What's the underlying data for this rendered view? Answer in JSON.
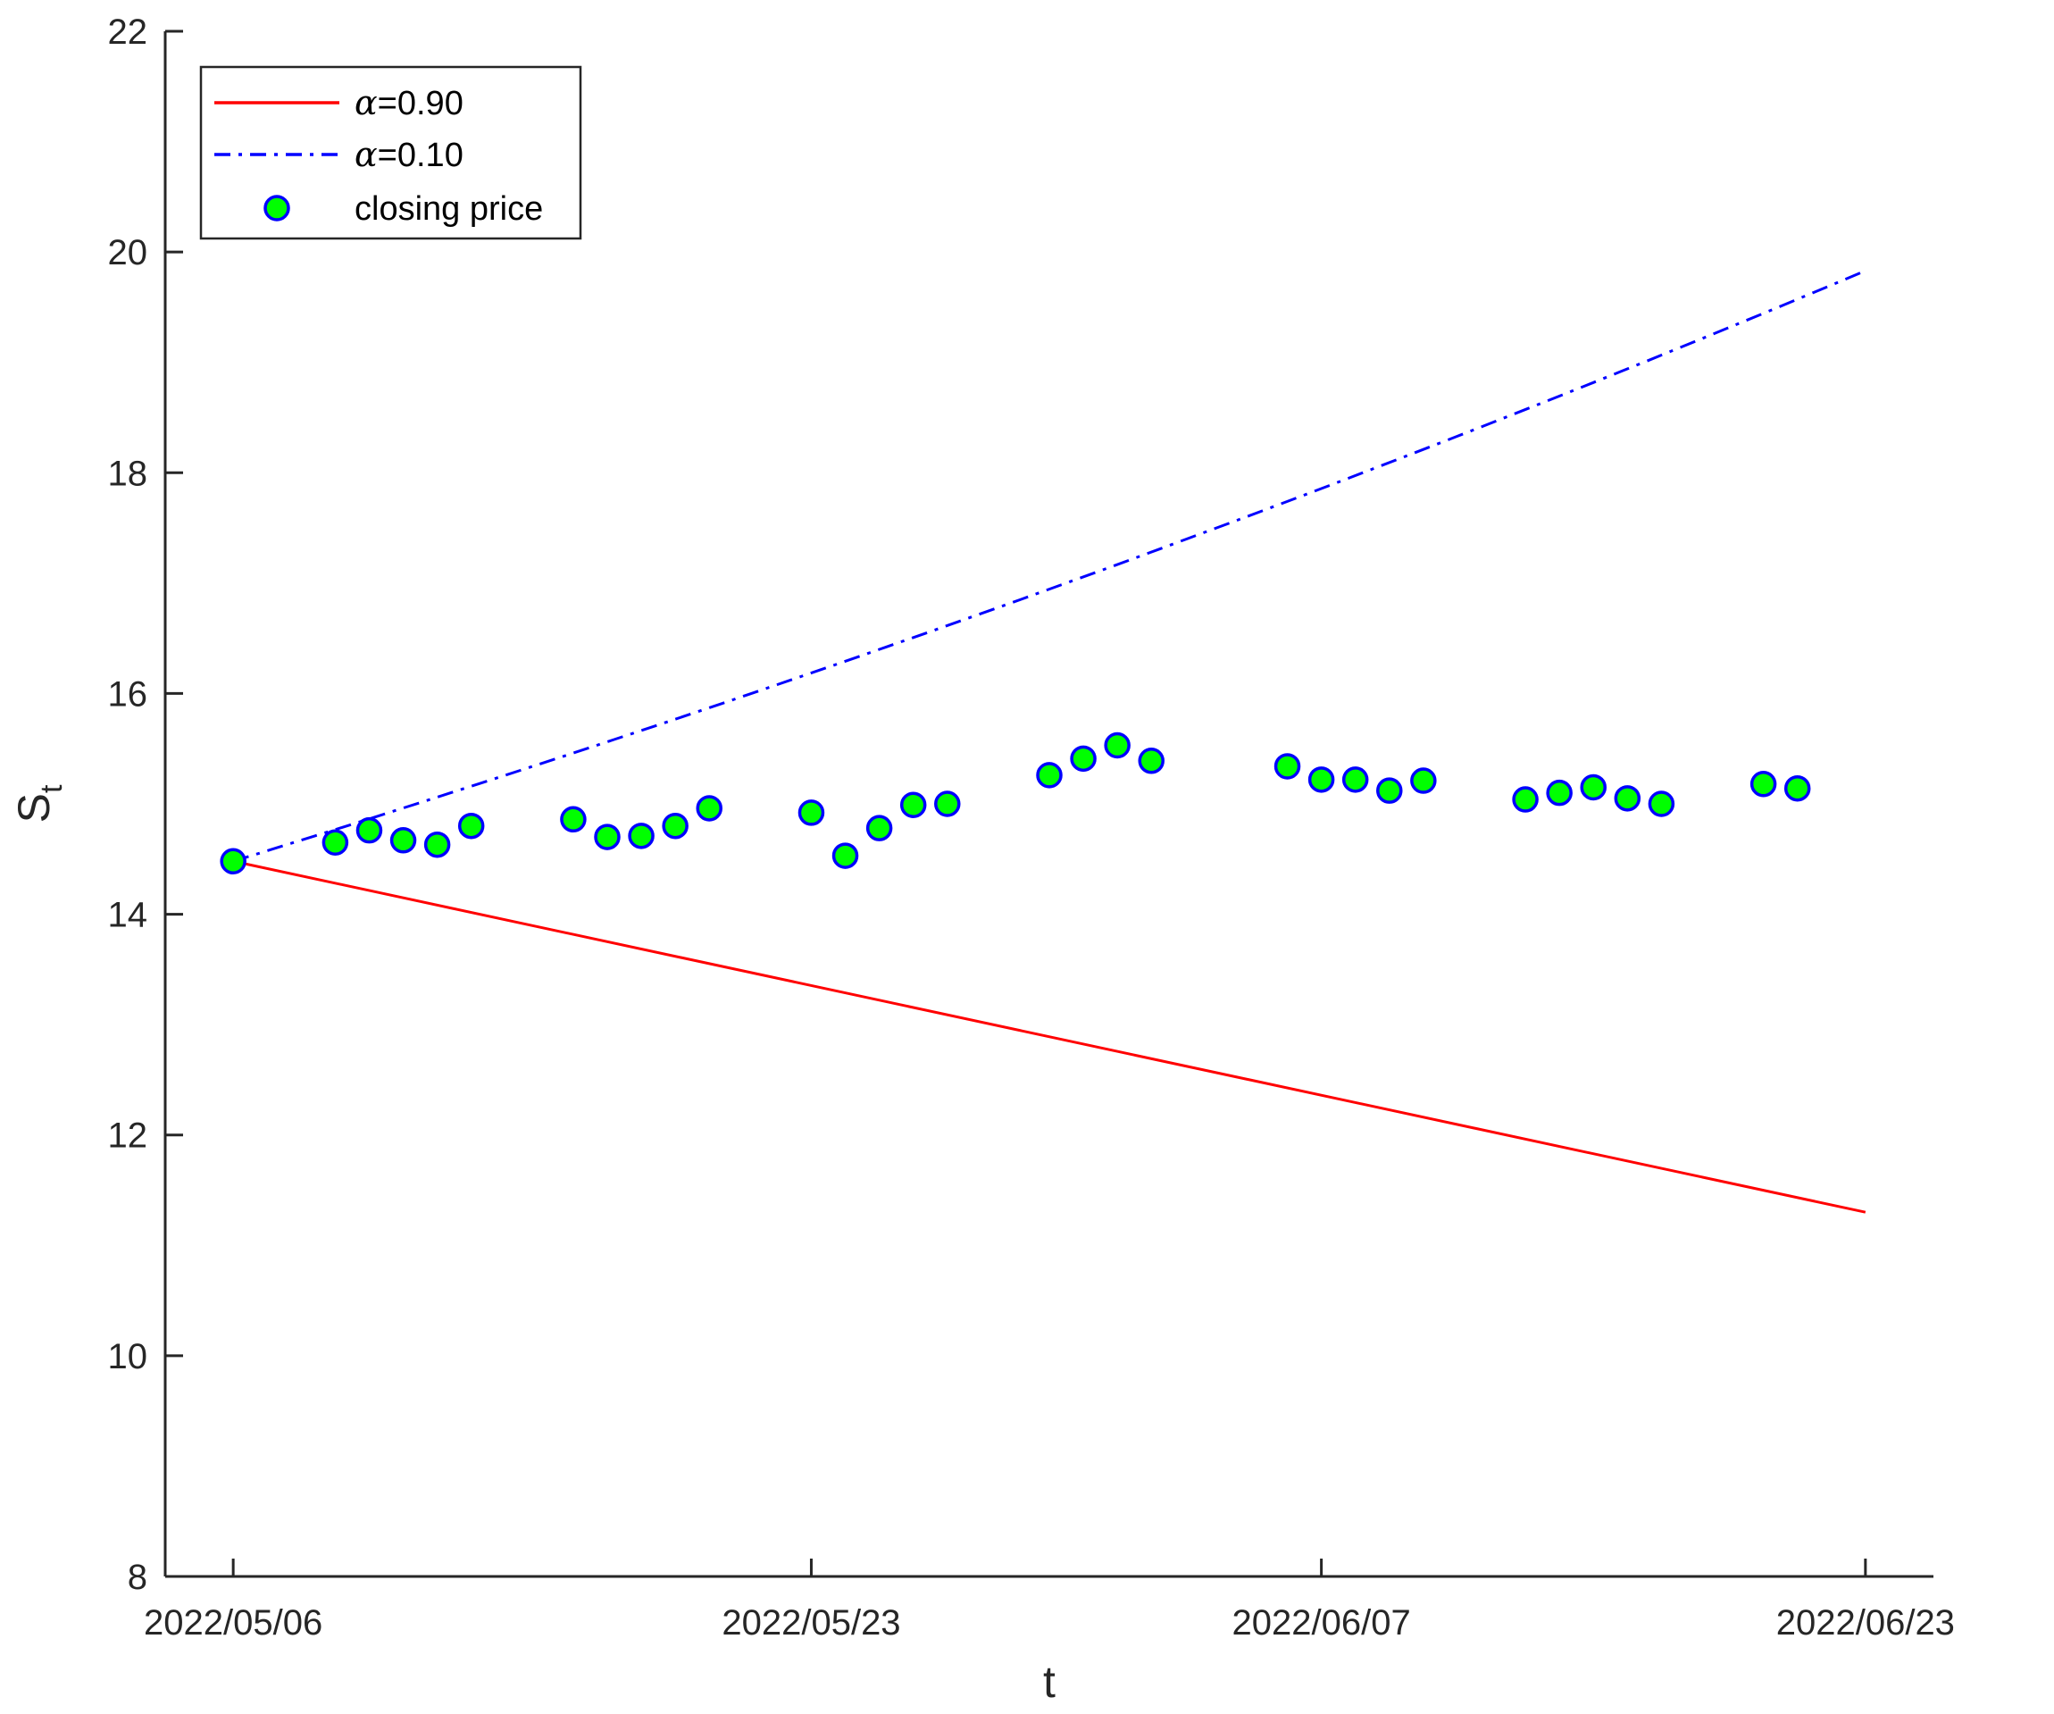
{
  "chart_data": {
    "type": "line",
    "xlabel": "t",
    "ylabel": "S",
    "ylabel_subscript": "t",
    "xlim": [
      "2022/05/04",
      "2022/06/25"
    ],
    "ylim": [
      8,
      22
    ],
    "x_ticks": [
      "2022/05/06",
      "2022/05/23",
      "2022/06/07",
      "2022/06/23"
    ],
    "y_ticks": [
      8,
      10,
      12,
      14,
      16,
      18,
      20,
      22
    ],
    "grid": false,
    "legend_position": "top-left",
    "series": [
      {
        "name": "α=0.90",
        "name_symbol": "α",
        "name_value": "=0.90",
        "style": "solid",
        "color": "#ff0000",
        "start": {
          "x": "2022/05/06",
          "y": 14.48
        },
        "end": {
          "x": "2022/06/23",
          "y": 11.3
        }
      },
      {
        "name": "α=0.10",
        "name_symbol": "α",
        "name_value": "=0.10",
        "style": "dash-dot",
        "color": "#0000ff",
        "start": {
          "x": "2022/05/06",
          "y": 14.48
        },
        "end": {
          "x": "2022/06/23",
          "y": 19.83
        }
      },
      {
        "name": "closing price",
        "style": "markers",
        "marker_fill": "#00ff00",
        "marker_edge": "#0000ff",
        "points": [
          {
            "x": "2022/05/06",
            "y": 14.48
          },
          {
            "x": "2022/05/09",
            "y": 14.65
          },
          {
            "x": "2022/05/10",
            "y": 14.76
          },
          {
            "x": "2022/05/11",
            "y": 14.67
          },
          {
            "x": "2022/05/12",
            "y": 14.63
          },
          {
            "x": "2022/05/13",
            "y": 14.8
          },
          {
            "x": "2022/05/16",
            "y": 14.86
          },
          {
            "x": "2022/05/17",
            "y": 14.7
          },
          {
            "x": "2022/05/18",
            "y": 14.71
          },
          {
            "x": "2022/05/19",
            "y": 14.8
          },
          {
            "x": "2022/05/20",
            "y": 14.96
          },
          {
            "x": "2022/05/23",
            "y": 14.92
          },
          {
            "x": "2022/05/24",
            "y": 14.53
          },
          {
            "x": "2022/05/25",
            "y": 14.78
          },
          {
            "x": "2022/05/26",
            "y": 14.99
          },
          {
            "x": "2022/05/27",
            "y": 15.0
          },
          {
            "x": "2022/05/30",
            "y": 15.26
          },
          {
            "x": "2022/05/31",
            "y": 15.41
          },
          {
            "x": "2022/06/01",
            "y": 15.53
          },
          {
            "x": "2022/06/02",
            "y": 15.39
          },
          {
            "x": "2022/06/06",
            "y": 15.34
          },
          {
            "x": "2022/06/07",
            "y": 15.22
          },
          {
            "x": "2022/06/08",
            "y": 15.22
          },
          {
            "x": "2022/06/09",
            "y": 15.12
          },
          {
            "x": "2022/06/10",
            "y": 15.21
          },
          {
            "x": "2022/06/13",
            "y": 15.04
          },
          {
            "x": "2022/06/14",
            "y": 15.1
          },
          {
            "x": "2022/06/15",
            "y": 15.15
          },
          {
            "x": "2022/06/16",
            "y": 15.05
          },
          {
            "x": "2022/06/17",
            "y": 15.0
          },
          {
            "x": "2022/06/20",
            "y": 15.18
          },
          {
            "x": "2022/06/21",
            "y": 15.14
          }
        ]
      }
    ]
  }
}
